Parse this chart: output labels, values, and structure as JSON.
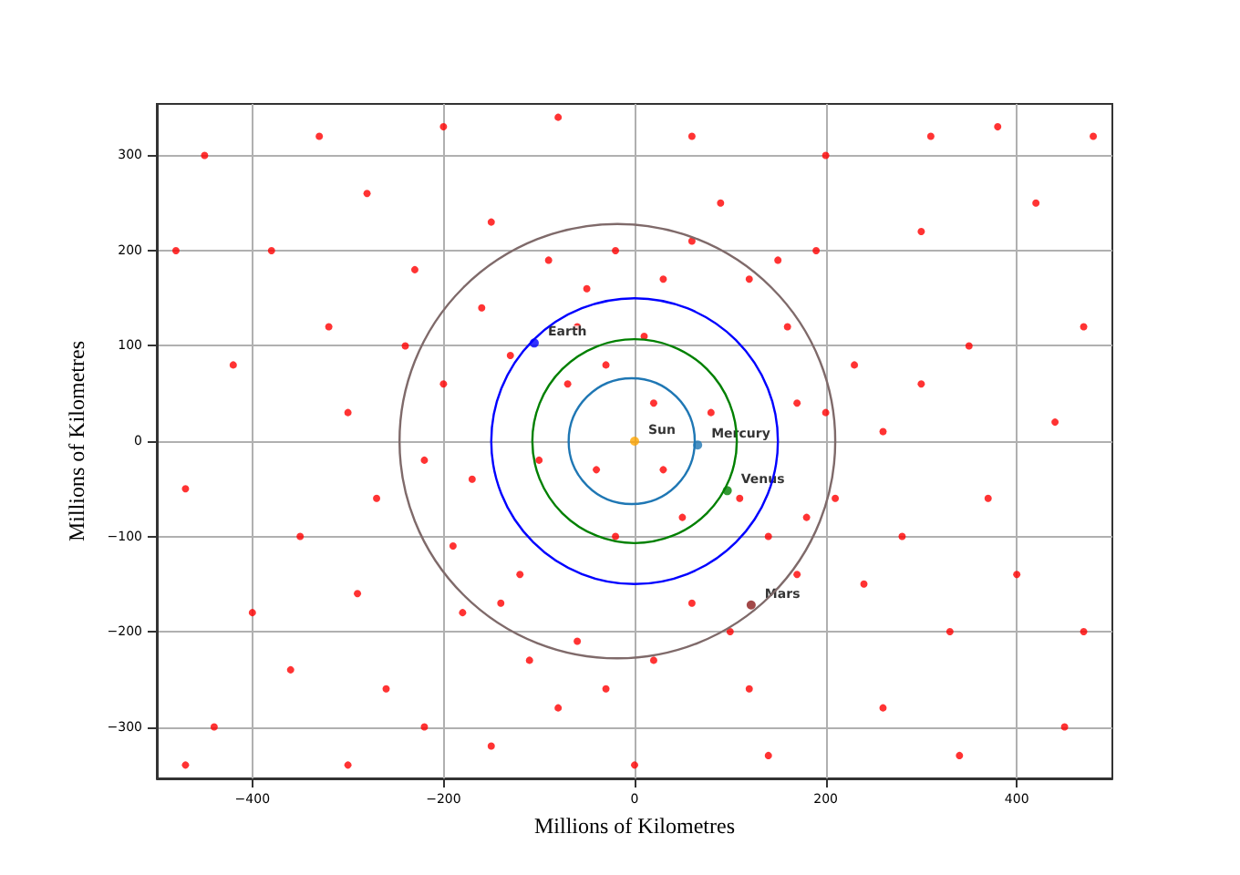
{
  "chart_data": {
    "type": "scatter",
    "xlabel": "Millions of Kilometres",
    "ylabel": "Millions of Kilometres",
    "xlim": [
      -500,
      500
    ],
    "ylim": [
      -354,
      354
    ],
    "xticks": [
      -400,
      -200,
      0,
      200,
      400
    ],
    "yticks": [
      -300,
      -200,
      -100,
      0,
      100,
      200,
      300
    ],
    "grid": true,
    "legend": false,
    "series": [
      {
        "marker": "circle",
        "color": "#ff0000",
        "x": [
          200,
          180,
          160,
          120,
          60,
          -20,
          -90,
          -160,
          -200,
          -220,
          -190,
          -140,
          -60,
          20,
          100,
          170,
          210,
          230,
          -240,
          -110,
          150,
          -180,
          30,
          -50,
          -130,
          -170,
          -120,
          60,
          140,
          170,
          -230,
          240,
          -30,
          90,
          -150,
          260,
          -270,
          190,
          -80,
          120,
          20,
          -40,
          50,
          -70,
          80,
          -20,
          10,
          -100,
          110,
          -60,
          30,
          -30,
          -450,
          -380,
          -420,
          -470,
          -400,
          -440,
          -330,
          -300,
          -350,
          -320,
          -280,
          -260,
          -200,
          -150,
          -80,
          0,
          60,
          140,
          200,
          260,
          300,
          330,
          350,
          370,
          420,
          450,
          470,
          400,
          440,
          480,
          -480,
          -360,
          310,
          -220,
          380,
          280,
          300,
          -300,
          -290,
          340,
          470,
          -470
        ],
        "values": [
          30,
          -80,
          120,
          170,
          210,
          200,
          190,
          140,
          60,
          -20,
          -110,
          -170,
          -210,
          -230,
          -200,
          -140,
          -60,
          80,
          100,
          -230,
          190,
          -180,
          170,
          160,
          90,
          -40,
          -140,
          -170,
          -100,
          40,
          180,
          -150,
          -260,
          250,
          230,
          10,
          -60,
          200,
          -280,
          -260,
          40,
          -30,
          -80,
          60,
          30,
          -100,
          110,
          -20,
          -60,
          120,
          -30,
          80,
          300,
          200,
          80,
          -50,
          -180,
          -300,
          320,
          -340,
          -100,
          120,
          260,
          -260,
          330,
          -320,
          340,
          -340,
          320,
          -330,
          300,
          -280,
          220,
          -200,
          100,
          -60,
          250,
          -300,
          120,
          -140,
          20,
          320,
          200,
          -240,
          320,
          -300,
          330,
          -100,
          60,
          30,
          -160,
          -330,
          -200,
          -340
        ]
      },
      {
        "type": "scatter",
        "marker": "circle",
        "name": "Sun",
        "color": "#ffa500",
        "x": [
          0
        ],
        "values": [
          0
        ]
      },
      {
        "type": "scatter",
        "marker": "circle",
        "name": "Mercury",
        "color": "#1f77b4",
        "x": [
          66
        ],
        "values": [
          -4
        ]
      },
      {
        "type": "scatter",
        "marker": "circle",
        "name": "Venus",
        "color": "#008000",
        "x": [
          97
        ],
        "values": [
          -52
        ]
      },
      {
        "type": "scatter",
        "marker": "circle",
        "name": "Earth",
        "color": "#0000ff",
        "x": [
          -105
        ],
        "values": [
          103
        ]
      },
      {
        "type": "scatter",
        "marker": "circle",
        "name": "Mars",
        "color": "#8b1a1a",
        "x": [
          122
        ],
        "values": [
          -172
        ]
      }
    ]
  }
}
